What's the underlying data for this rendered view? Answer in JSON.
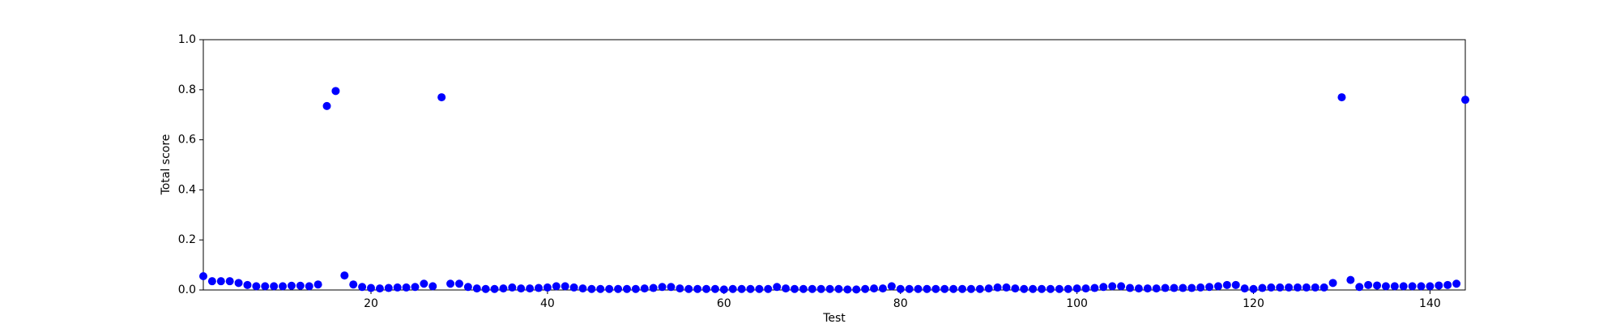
{
  "chart_data": {
    "type": "scatter",
    "xlabel": "Test",
    "ylabel": "Total score",
    "color": "#0000ff",
    "grid": false,
    "x": [
      1,
      2,
      3,
      4,
      5,
      6,
      7,
      8,
      9,
      10,
      11,
      12,
      13,
      14,
      15,
      16,
      17,
      18,
      19,
      20,
      21,
      22,
      23,
      24,
      25,
      26,
      27,
      28,
      29,
      30,
      31,
      32,
      33,
      34,
      35,
      36,
      37,
      38,
      39,
      40,
      41,
      42,
      43,
      44,
      45,
      46,
      47,
      48,
      49,
      50,
      51,
      52,
      53,
      54,
      55,
      56,
      57,
      58,
      59,
      60,
      61,
      62,
      63,
      64,
      65,
      66,
      67,
      68,
      69,
      70,
      71,
      72,
      73,
      74,
      75,
      76,
      77,
      78,
      79,
      80,
      81,
      82,
      83,
      84,
      85,
      86,
      87,
      88,
      89,
      90,
      91,
      92,
      93,
      94,
      95,
      96,
      97,
      98,
      99,
      100,
      101,
      102,
      103,
      104,
      105,
      106,
      107,
      108,
      109,
      110,
      111,
      112,
      113,
      114,
      115,
      116,
      117,
      118,
      119,
      120,
      121,
      122,
      123,
      124,
      125,
      126,
      127,
      128,
      129,
      130,
      131,
      132,
      133,
      134,
      135,
      136,
      137,
      138,
      139,
      140,
      141,
      142,
      143,
      144
    ],
    "values": [
      0.055,
      0.035,
      0.035,
      0.035,
      0.028,
      0.02,
      0.015,
      0.015,
      0.015,
      0.015,
      0.017,
      0.017,
      0.015,
      0.022,
      0.735,
      0.795,
      0.058,
      0.022,
      0.012,
      0.008,
      0.006,
      0.008,
      0.01,
      0.01,
      0.012,
      0.025,
      0.015,
      0.77,
      0.025,
      0.025,
      0.012,
      0.006,
      0.004,
      0.004,
      0.006,
      0.01,
      0.006,
      0.006,
      0.008,
      0.01,
      0.015,
      0.015,
      0.01,
      0.006,
      0.004,
      0.004,
      0.004,
      0.004,
      0.004,
      0.004,
      0.006,
      0.008,
      0.012,
      0.012,
      0.006,
      0.004,
      0.004,
      0.004,
      0.004,
      0.002,
      0.004,
      0.004,
      0.004,
      0.004,
      0.004,
      0.012,
      0.006,
      0.004,
      0.004,
      0.004,
      0.004,
      0.004,
      0.004,
      0.002,
      0.002,
      0.004,
      0.006,
      0.006,
      0.015,
      0.004,
      0.004,
      0.004,
      0.004,
      0.004,
      0.004,
      0.004,
      0.004,
      0.004,
      0.004,
      0.006,
      0.01,
      0.01,
      0.006,
      0.004,
      0.004,
      0.004,
      0.004,
      0.004,
      0.004,
      0.006,
      0.006,
      0.008,
      0.012,
      0.015,
      0.015,
      0.008,
      0.006,
      0.006,
      0.006,
      0.008,
      0.008,
      0.008,
      0.008,
      0.01,
      0.012,
      0.015,
      0.02,
      0.02,
      0.006,
      0.004,
      0.008,
      0.01,
      0.01,
      0.01,
      0.01,
      0.01,
      0.01,
      0.01,
      0.028,
      0.77,
      0.04,
      0.012,
      0.02,
      0.018,
      0.015,
      0.015,
      0.015,
      0.015,
      0.015,
      0.015,
      0.018,
      0.02,
      0.025,
      0.76
    ],
    "xlim": [
      1,
      144
    ],
    "xticks": [
      20,
      40,
      60,
      80,
      100,
      120,
      140
    ],
    "ylim": [
      0,
      1
    ],
    "yticks": [
      {
        "value": 0,
        "label": "0.0"
      },
      0.2,
      0.4,
      0.6,
      0.8,
      {
        "value": 1,
        "label": "1.0"
      }
    ]
  }
}
